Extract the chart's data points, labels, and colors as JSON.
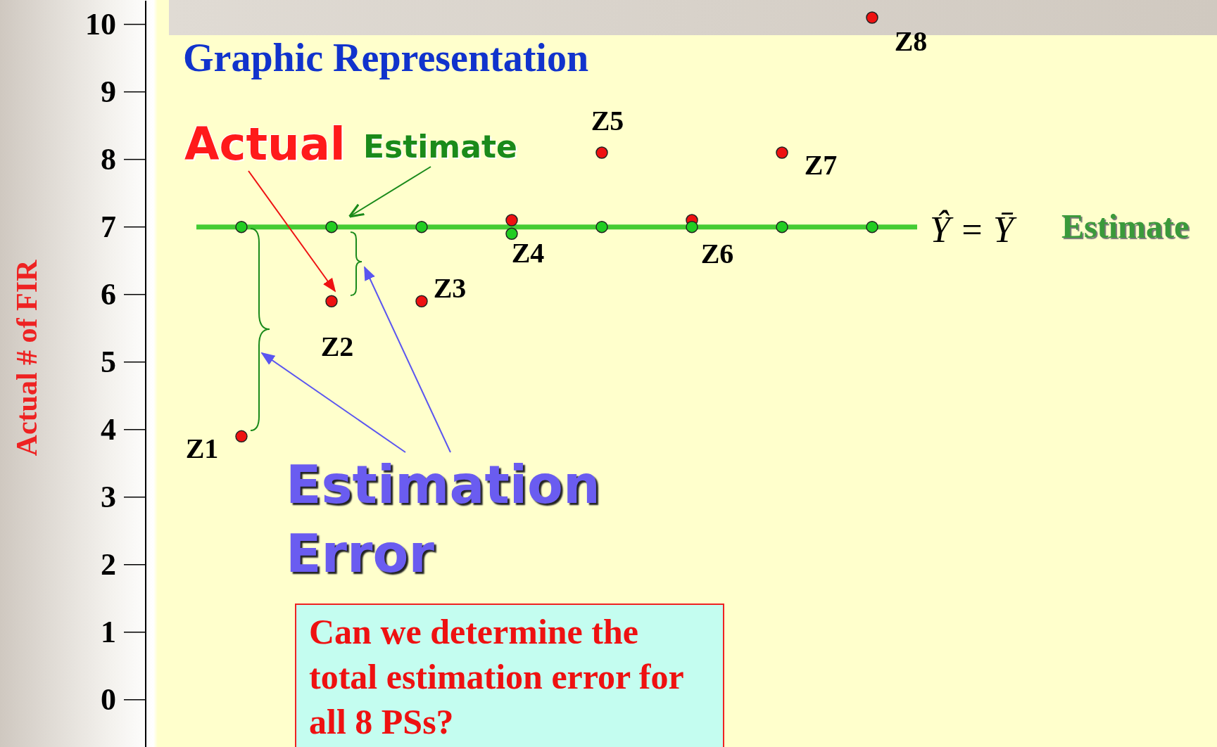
{
  "chart_data": {
    "type": "scatter",
    "title": "Graphic Representation",
    "ylabel": "Actual # of FIR",
    "categories": [
      null,
      null,
      null,
      null,
      null,
      null,
      null,
      null
    ],
    "tick_labels": "y",
    "marker": "circle",
    "series": [
      {
        "color": "#ee1111",
        "values": [
          3.9,
          5.9,
          5.9,
          7.1,
          8.1,
          7.1,
          8.1,
          10.1
        ],
        "value_labels": [
          "Z1",
          "Z2",
          "Z3",
          "Z4",
          "Z5",
          "Z6",
          "Z7",
          "Z8"
        ]
      },
      {
        "color": "#22cc22",
        "values": [
          7,
          7,
          7,
          6.9,
          7,
          7,
          7,
          7
        ]
      }
    ],
    "ylim": [
      -0.7,
      10.35
    ],
    "yticks": [
      0,
      1,
      2,
      3,
      4,
      5,
      6,
      7,
      8,
      9,
      10
    ],
    "ref_lines": [
      {
        "axis": "y",
        "value": 7,
        "label": "Ŷ = Ȳ",
        "color": "#44cc33"
      }
    ],
    "annotations": [
      "Actual",
      "Estimate",
      "Estimate",
      "Estimation Error",
      "Can we determine the total estimation error for all 8 PSs?"
    ]
  }
}
